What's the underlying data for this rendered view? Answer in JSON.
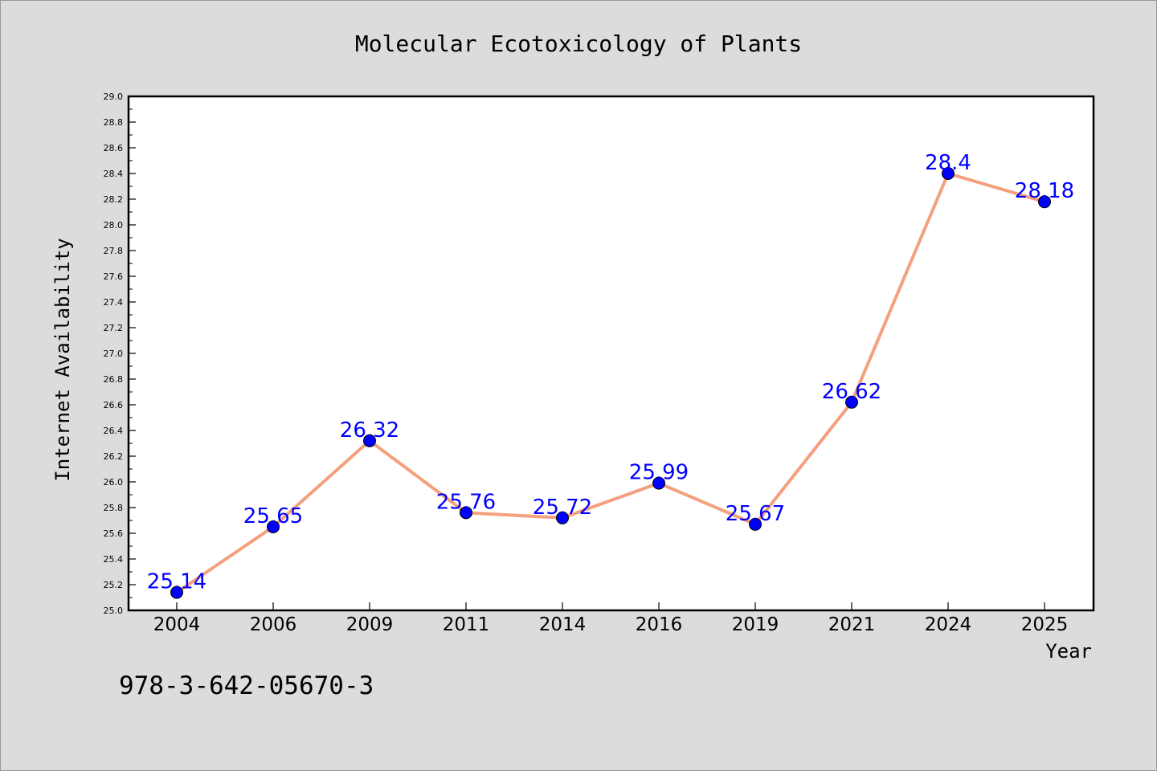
{
  "chart_data": {
    "type": "line",
    "title": "Molecular Ecotoxicology of Plants",
    "xlabel": "Year",
    "ylabel": "Internet Availability",
    "categories": [
      "2004",
      "2006",
      "2009",
      "2011",
      "2014",
      "2016",
      "2019",
      "2021",
      "2024",
      "2025"
    ],
    "series": [
      {
        "values": [
          25.14,
          25.65,
          26.32,
          25.76,
          25.72,
          25.99,
          25.67,
          26.62,
          28.4,
          28.18
        ],
        "labels": [
          "25.14",
          "25.65",
          "26.32",
          "25.76",
          "25.72",
          "25.99",
          "25.67",
          "26.62",
          "28.4",
          "28.18"
        ]
      }
    ],
    "ylim": [
      25.0,
      29.0
    ],
    "yticks": [
      "25.0",
      "25.2",
      "25.4",
      "25.6",
      "25.8",
      "26.0",
      "26.2",
      "26.4",
      "26.6",
      "26.8",
      "27.0",
      "27.2",
      "27.4",
      "27.6",
      "27.8",
      "28.0",
      "28.2",
      "28.4",
      "28.6",
      "28.8",
      "29.0"
    ],
    "grid": false,
    "colors": {
      "line": "#f4a07e",
      "marker": "#0000ff",
      "label": "#0000ff",
      "background": "#dcdcdc",
      "plot_area": "#ffffff"
    }
  },
  "footnote": "978-3-642-05670-3"
}
